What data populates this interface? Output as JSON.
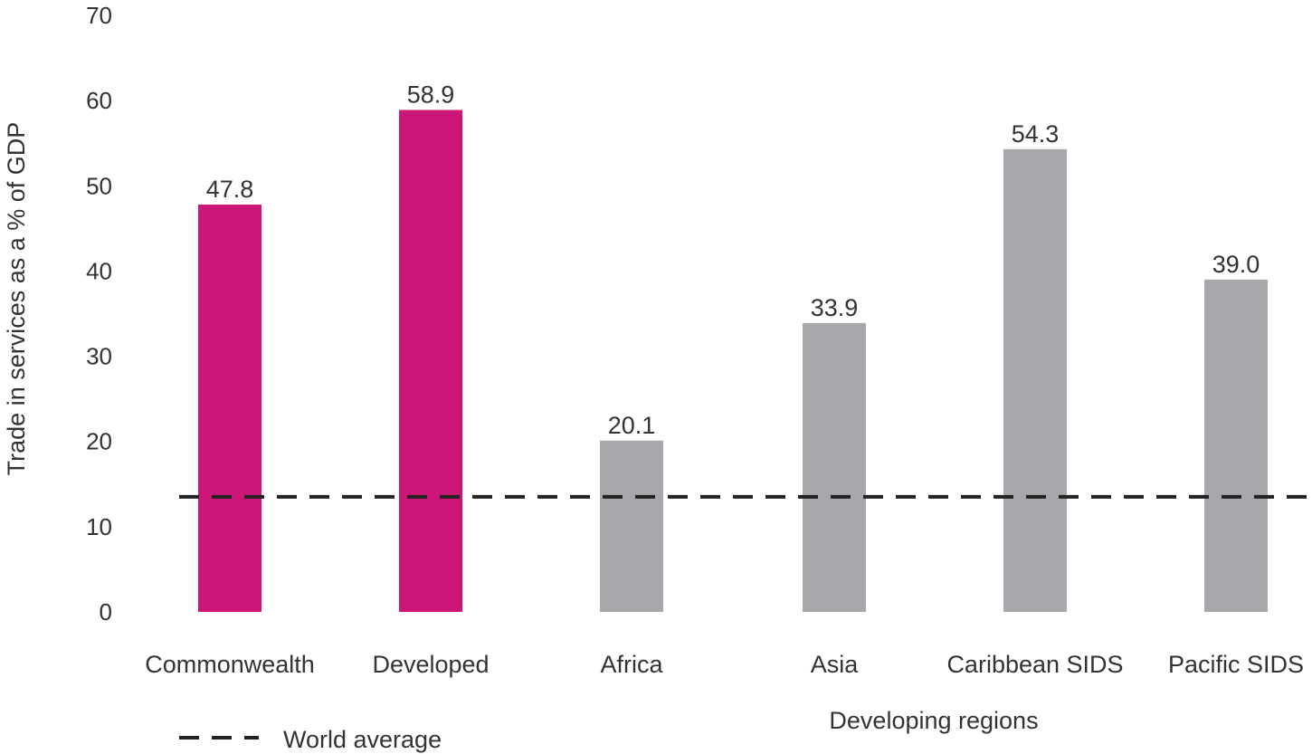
{
  "chart_data": {
    "type": "bar",
    "ylabel": "Trade in services as a % of GDP",
    "ylim": [
      0,
      70
    ],
    "yticks": [
      0,
      10,
      20,
      30,
      40,
      50,
      60,
      70
    ],
    "categories": [
      "Commonwealth",
      "Developed",
      "Africa",
      "Asia",
      "Caribbean SIDS",
      "Pacific SIDS"
    ],
    "values": [
      47.8,
      58.9,
      20.1,
      33.9,
      54.3,
      39.0
    ],
    "value_labels": [
      "47.8",
      "58.9",
      "20.1",
      "33.9",
      "54.3",
      "39.0"
    ],
    "bar_colors": [
      "#cc1778",
      "#cc1778",
      "#a7a8ab",
      "#a7a8ab",
      "#a7a8ab",
      "#a7a8ab"
    ],
    "group_label": "Developing regions",
    "reference_line": {
      "label": "World average",
      "value": 13.5,
      "color": "#222222",
      "style": "dashed"
    },
    "legend": {
      "position": "bottom-left",
      "entries": [
        "World average"
      ]
    },
    "grid": false
  }
}
